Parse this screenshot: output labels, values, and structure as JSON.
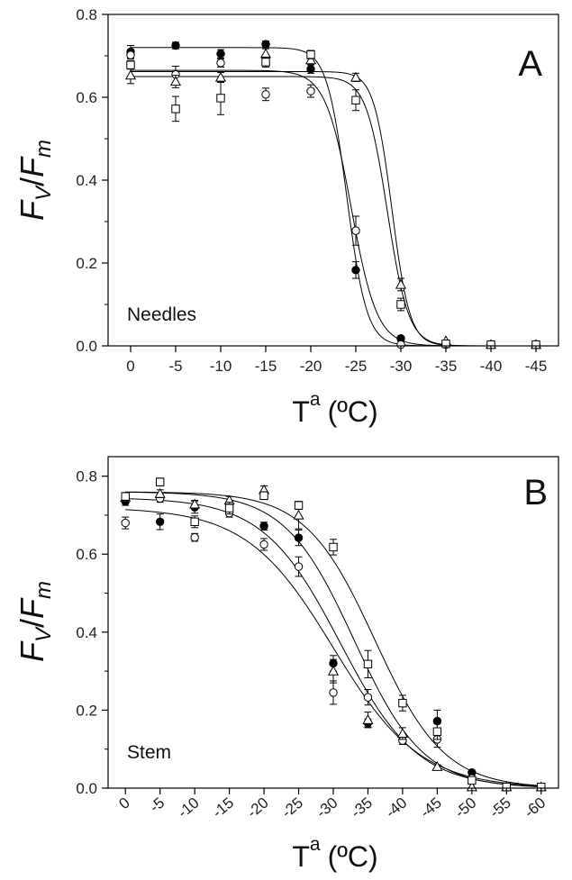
{
  "chart_data": [
    {
      "type": "scatter",
      "panel_letter": "A",
      "panel_label": "Needles",
      "ylabel_main": "F",
      "ylabel_sub1": "V",
      "ylabel_slash": "/",
      "ylabel_sub2": "m",
      "xlabel_main": "T",
      "xlabel_sup": "a",
      "xlabel_unit": "(ºC)",
      "x_ticks": [
        0,
        -5,
        -10,
        -15,
        -20,
        -25,
        -30,
        -35,
        -40,
        -45
      ],
      "x_tick_labels": [
        "0",
        "-5",
        "-10",
        "-15",
        "-20",
        "-25",
        "-30",
        "-35",
        "-40",
        "-45"
      ],
      "x_tick_rotated": false,
      "xlim": [
        2.5,
        -47.5
      ],
      "ylim": [
        0,
        0.8
      ],
      "y_ticks": [
        0.0,
        0.2,
        0.4,
        0.6,
        0.8
      ],
      "y_tick_labels": [
        "0.0",
        "0.2",
        "0.4",
        "0.6",
        "0.8"
      ],
      "grid": false,
      "series": [
        {
          "marker": "filled-circle",
          "points": [
            {
              "x": 0,
              "y": 0.71,
              "err": 0.015
            },
            {
              "x": -5,
              "y": 0.725,
              "err": 0.008
            },
            {
              "x": -10,
              "y": 0.705,
              "err": 0.01
            },
            {
              "x": -15,
              "y": 0.728,
              "err": 0.008
            },
            {
              "x": -20,
              "y": 0.668,
              "err": 0.01
            },
            {
              "x": -25,
              "y": 0.183,
              "err": 0.02
            },
            {
              "x": -30,
              "y": 0.018,
              "err": 0.005
            },
            {
              "x": -35,
              "y": 0.005,
              "err": 0.0
            },
            {
              "x": -40,
              "y": 0.003,
              "err": 0.0
            },
            {
              "x": -45,
              "y": 0.003,
              "err": 0.0
            }
          ],
          "fit": {
            "top": 0.72,
            "x50": -24.0,
            "slope": 0.9
          }
        },
        {
          "marker": "open-circle",
          "points": [
            {
              "x": 0,
              "y": 0.702,
              "err": 0.01
            },
            {
              "x": -5,
              "y": 0.655,
              "err": 0.02
            },
            {
              "x": -10,
              "y": 0.683,
              "err": 0.01
            },
            {
              "x": -15,
              "y": 0.607,
              "err": 0.015
            },
            {
              "x": -20,
              "y": 0.615,
              "err": 0.015
            },
            {
              "x": -25,
              "y": 0.278,
              "err": 0.035
            },
            {
              "x": -30,
              "y": 0.003,
              "err": 0.0
            },
            {
              "x": -35,
              "y": 0.003,
              "err": 0.0
            },
            {
              "x": -40,
              "y": 0.003,
              "err": 0.0
            },
            {
              "x": -45,
              "y": 0.003,
              "err": 0.0
            }
          ],
          "fit": {
            "top": 0.665,
            "x50": -24.5,
            "slope": 0.7
          }
        },
        {
          "marker": "open-triangle",
          "points": [
            {
              "x": 0,
              "y": 0.653,
              "err": 0.02
            },
            {
              "x": -5,
              "y": 0.638,
              "err": 0.015
            },
            {
              "x": -10,
              "y": 0.648,
              "err": 0.012
            },
            {
              "x": -15,
              "y": 0.705,
              "err": 0.012
            },
            {
              "x": -20,
              "y": 0.69,
              "err": 0.01
            },
            {
              "x": -25,
              "y": 0.648,
              "err": 0.01
            },
            {
              "x": -30,
              "y": 0.148,
              "err": 0.015
            },
            {
              "x": -35,
              "y": 0.012,
              "err": 0.0
            },
            {
              "x": -40,
              "y": 0.003,
              "err": 0.0
            },
            {
              "x": -45,
              "y": 0.003,
              "err": 0.0
            }
          ],
          "fit": {
            "top": 0.662,
            "x50": -29.0,
            "slope": 1.0
          }
        },
        {
          "marker": "open-square",
          "points": [
            {
              "x": 0,
              "y": 0.678,
              "err": 0.01
            },
            {
              "x": -5,
              "y": 0.572,
              "err": 0.03
            },
            {
              "x": -10,
              "y": 0.598,
              "err": 0.04
            },
            {
              "x": -15,
              "y": 0.685,
              "err": 0.012
            },
            {
              "x": -20,
              "y": 0.703,
              "err": 0.01
            },
            {
              "x": -25,
              "y": 0.593,
              "err": 0.025
            },
            {
              "x": -30,
              "y": 0.1,
              "err": 0.015
            },
            {
              "x": -35,
              "y": 0.005,
              "err": 0.0
            },
            {
              "x": -40,
              "y": 0.003,
              "err": 0.0
            },
            {
              "x": -45,
              "y": 0.003,
              "err": 0.0
            }
          ],
          "fit": {
            "top": 0.65,
            "x50": -28.5,
            "slope": 0.85
          }
        }
      ]
    },
    {
      "type": "scatter",
      "panel_letter": "B",
      "panel_label": "Stem",
      "ylabel_main": "F",
      "ylabel_sub1": "V",
      "ylabel_slash": "/",
      "ylabel_sub2": "m",
      "xlabel_main": "T",
      "xlabel_sup": "a",
      "xlabel_unit": "(ºC)",
      "x_ticks": [
        0,
        -5,
        -10,
        -15,
        -20,
        -25,
        -30,
        -35,
        -40,
        -45,
        -50,
        -55,
        -60
      ],
      "x_tick_labels": [
        "0",
        "-5",
        "-10",
        "-15",
        "-20",
        "-25",
        "-30",
        "-35",
        "-40",
        "-45",
        "-50",
        "-55",
        "-60"
      ],
      "x_tick_rotated": true,
      "xlim": [
        2.5,
        -62.5
      ],
      "ylim": [
        0,
        0.85
      ],
      "y_ticks": [
        0.0,
        0.2,
        0.4,
        0.6,
        0.8
      ],
      "y_tick_labels": [
        "0.0",
        "0.2",
        "0.4",
        "0.6",
        "0.8"
      ],
      "grid": false,
      "series": [
        {
          "marker": "filled-circle",
          "points": [
            {
              "x": 0,
              "y": 0.735,
              "err": 0.01
            },
            {
              "x": -5,
              "y": 0.683,
              "err": 0.02
            },
            {
              "x": -10,
              "y": 0.72,
              "err": 0.015
            },
            {
              "x": -15,
              "y": 0.72,
              "err": 0.01
            },
            {
              "x": -20,
              "y": 0.672,
              "err": 0.01
            },
            {
              "x": -25,
              "y": 0.642,
              "err": 0.02
            },
            {
              "x": -30,
              "y": 0.32,
              "err": 0.02
            },
            {
              "x": -35,
              "y": 0.167,
              "err": 0.01
            },
            {
              "x": -40,
              "y": 0.122,
              "err": 0.01
            },
            {
              "x": -45,
              "y": 0.172,
              "err": 0.028
            },
            {
              "x": -50,
              "y": 0.04,
              "err": 0.003
            },
            {
              "x": -55,
              "y": 0.003,
              "err": 0.0
            },
            {
              "x": -60,
              "y": 0.003,
              "err": 0.0
            }
          ],
          "fit": {
            "top": 0.76,
            "x50": -33.0,
            "slope": 0.2
          }
        },
        {
          "marker": "open-circle",
          "points": [
            {
              "x": 0,
              "y": 0.68,
              "err": 0.015
            },
            {
              "x": -5,
              "y": 0.743,
              "err": 0.01
            },
            {
              "x": -10,
              "y": 0.643,
              "err": 0.01
            },
            {
              "x": -15,
              "y": 0.705,
              "err": 0.01
            },
            {
              "x": -20,
              "y": 0.625,
              "err": 0.015
            },
            {
              "x": -25,
              "y": 0.568,
              "err": 0.025
            },
            {
              "x": -30,
              "y": 0.245,
              "err": 0.03
            },
            {
              "x": -35,
              "y": 0.233,
              "err": 0.02
            },
            {
              "x": -40,
              "y": 0.122,
              "err": 0.01
            },
            {
              "x": -45,
              "y": 0.125,
              "err": 0.02
            },
            {
              "x": -50,
              "y": 0.025,
              "err": 0.0
            },
            {
              "x": -55,
              "y": 0.003,
              "err": 0.0
            },
            {
              "x": -60,
              "y": 0.003,
              "err": 0.0
            }
          ],
          "fit": {
            "top": 0.72,
            "x50": -30.0,
            "slope": 0.16
          }
        },
        {
          "marker": "open-triangle",
          "points": [
            {
              "x": 0,
              "y": 0.745,
              "err": 0.01
            },
            {
              "x": -5,
              "y": 0.755,
              "err": 0.01
            },
            {
              "x": -10,
              "y": 0.728,
              "err": 0.01
            },
            {
              "x": -15,
              "y": 0.738,
              "err": 0.01
            },
            {
              "x": -20,
              "y": 0.765,
              "err": 0.01
            },
            {
              "x": -25,
              "y": 0.7,
              "err": 0.035
            },
            {
              "x": -30,
              "y": 0.3,
              "err": 0.03
            },
            {
              "x": -35,
              "y": 0.175,
              "err": 0.02
            },
            {
              "x": -40,
              "y": 0.14,
              "err": 0.015
            },
            {
              "x": -45,
              "y": 0.055,
              "err": 0.005
            },
            {
              "x": -50,
              "y": 0.003,
              "err": 0.0
            },
            {
              "x": -55,
              "y": 0.003,
              "err": 0.0
            },
            {
              "x": -60,
              "y": 0.003,
              "err": 0.0
            }
          ],
          "fit": {
            "top": 0.745,
            "x50": -31.0,
            "slope": 0.18
          }
        },
        {
          "marker": "open-square",
          "points": [
            {
              "x": 0,
              "y": 0.748,
              "err": 0.01
            },
            {
              "x": -5,
              "y": 0.785,
              "err": 0.01
            },
            {
              "x": -10,
              "y": 0.683,
              "err": 0.015
            },
            {
              "x": -15,
              "y": 0.718,
              "err": 0.015
            },
            {
              "x": -20,
              "y": 0.75,
              "err": 0.01
            },
            {
              "x": -25,
              "y": 0.725,
              "err": 0.01
            },
            {
              "x": -30,
              "y": 0.618,
              "err": 0.02
            },
            {
              "x": -35,
              "y": 0.318,
              "err": 0.035
            },
            {
              "x": -40,
              "y": 0.218,
              "err": 0.02
            },
            {
              "x": -45,
              "y": 0.145,
              "err": 0.02
            },
            {
              "x": -50,
              "y": 0.02,
              "err": 0.0
            },
            {
              "x": -55,
              "y": 0.003,
              "err": 0.0
            },
            {
              "x": -60,
              "y": 0.003,
              "err": 0.0
            }
          ],
          "fit": {
            "top": 0.76,
            "x50": -36.0,
            "slope": 0.2
          }
        }
      ]
    }
  ]
}
